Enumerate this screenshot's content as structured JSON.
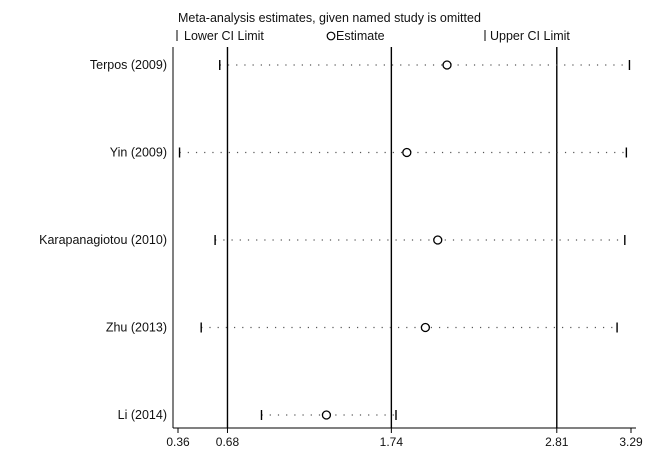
{
  "chart_data": {
    "type": "scatter",
    "title": "Meta-analysis estimates, given named study is omitted",
    "legend": {
      "lower": "Lower CI Limit",
      "estimate": "Estimate",
      "upper": "Upper CI Limit"
    },
    "xlim": [
      0.36,
      3.29
    ],
    "xticks": [
      0.36,
      0.68,
      1.74,
      2.81,
      3.29
    ],
    "xtick_labels": [
      "0.36",
      "0.68",
      "1.74",
      "2.81",
      "3.29"
    ],
    "reference_lines": [
      0.68,
      1.74,
      2.81
    ],
    "studies": [
      {
        "label": "Terpos (2009)",
        "lower": 0.63,
        "estimate": 2.1,
        "upper": 3.28
      },
      {
        "label": "Yin (2009)",
        "lower": 0.37,
        "estimate": 1.84,
        "upper": 3.26
      },
      {
        "label": "Karapanagiotou (2010)",
        "lower": 0.6,
        "estimate": 2.04,
        "upper": 3.25
      },
      {
        "label": "Zhu (2013)",
        "lower": 0.51,
        "estimate": 1.96,
        "upper": 3.2
      },
      {
        "label": "Li (2014)",
        "lower": 0.9,
        "estimate": 1.32,
        "upper": 1.77
      }
    ],
    "grid": false,
    "legend_position": "top"
  }
}
